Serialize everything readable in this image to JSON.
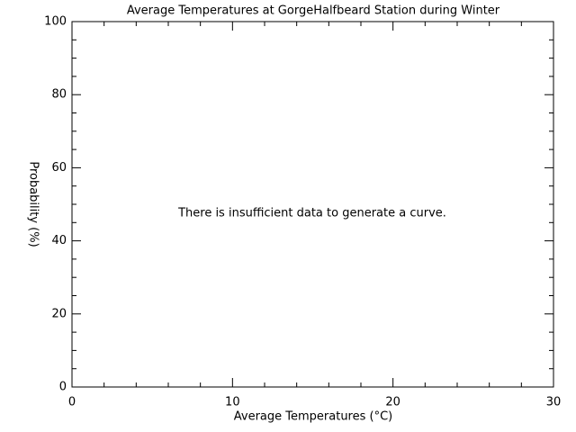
{
  "chart_data": {
    "type": "line",
    "title": "Average Temperatures at GorgeHalfbeard Station during Winter",
    "xlabel": "Average Temperatures (°C)",
    "ylabel": "Probability (%)",
    "annotation": "There is insufficient data to generate a curve.",
    "xlim": [
      0,
      30
    ],
    "xticks": [
      0,
      10,
      20,
      30
    ],
    "xminorticks": [
      2,
      4,
      6,
      8,
      12,
      14,
      16,
      18,
      22,
      24,
      26,
      28
    ],
    "ylim": [
      0,
      100
    ],
    "yticks": [
      0,
      20,
      40,
      60,
      80,
      100
    ],
    "yminorticks": [
      5,
      10,
      15,
      25,
      30,
      35,
      45,
      50,
      55,
      65,
      70,
      75,
      85,
      90,
      95
    ],
    "grid": false
  }
}
